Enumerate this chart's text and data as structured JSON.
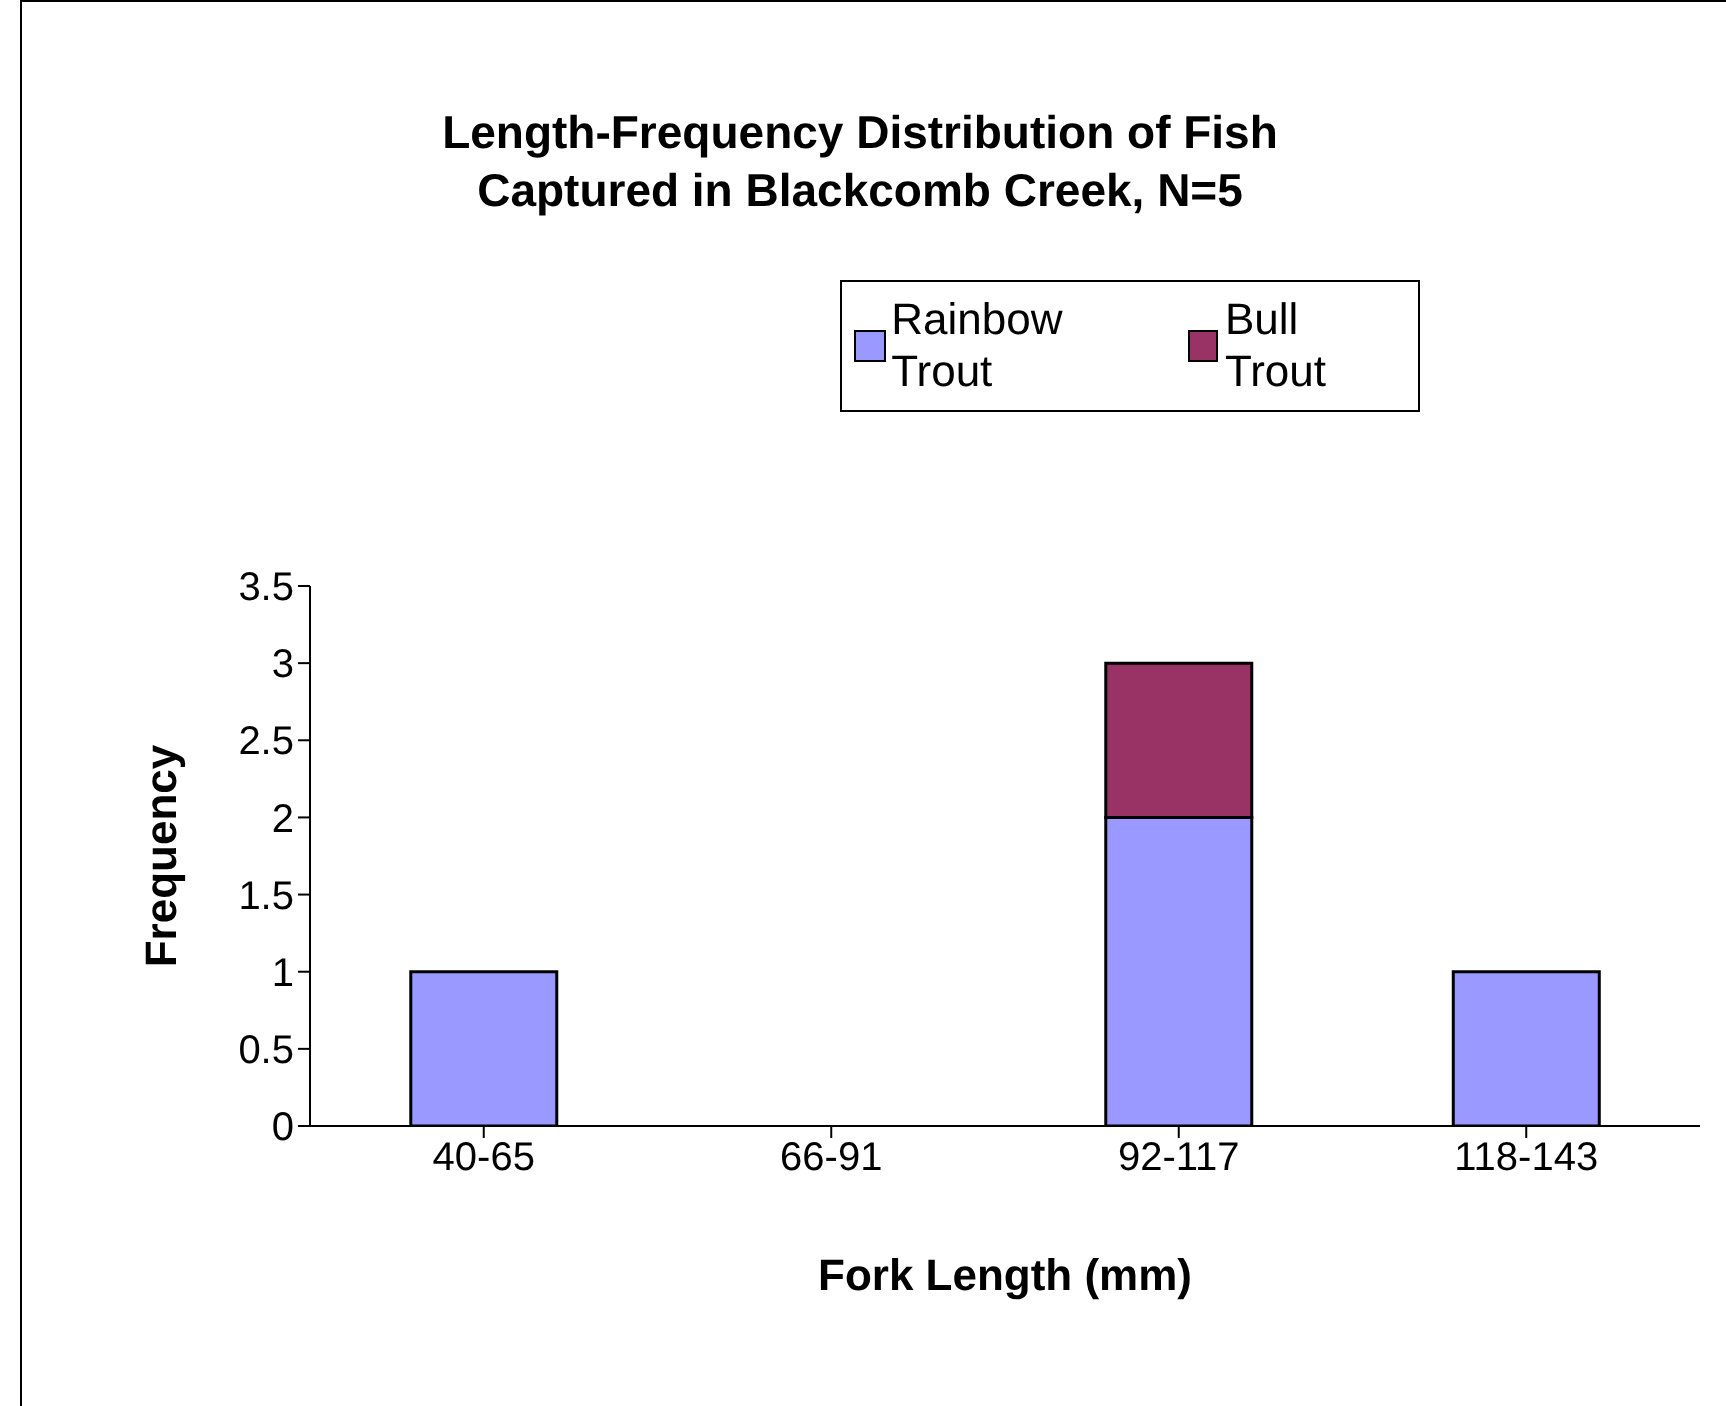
{
  "chart_data": {
    "type": "bar",
    "title": "Length-Frequency Distribution of Fish Captured in Blackcomb Creek, N=5",
    "xlabel": "Fork Length (mm)",
    "ylabel": "Frequency",
    "categories": [
      "40-65",
      "66-91",
      "92-117",
      "118-143"
    ],
    "stacked": true,
    "series": [
      {
        "name": "Rainbow Trout",
        "color": "#9999ff",
        "values": [
          1,
          0,
          2,
          1
        ]
      },
      {
        "name": "Bull Trout",
        "color": "#993366",
        "values": [
          0,
          0,
          1,
          0
        ]
      }
    ],
    "ylim": [
      0,
      3.5
    ],
    "yticks": [
      0,
      0.5,
      1,
      1.5,
      2,
      2.5,
      3,
      3.5
    ],
    "grid": false,
    "legend": "top"
  }
}
